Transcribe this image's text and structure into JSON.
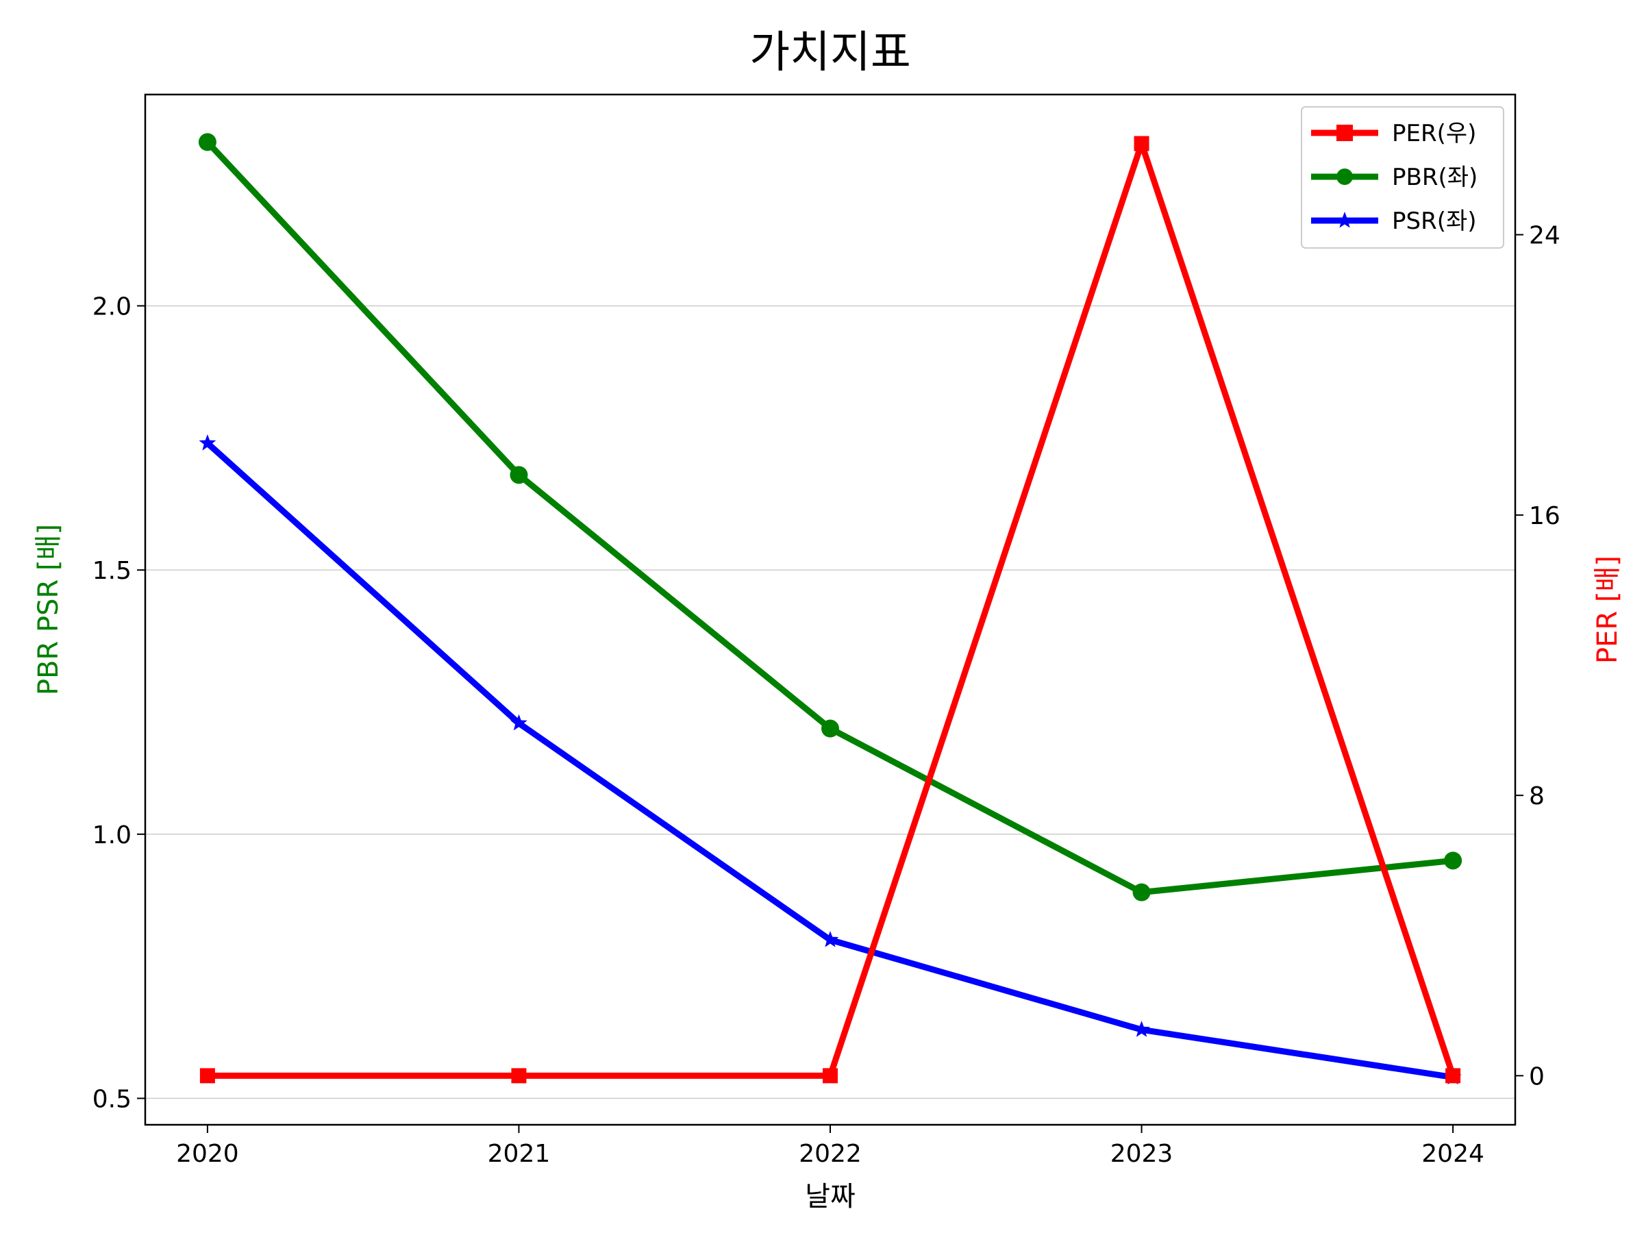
{
  "chart_data": {
    "type": "line",
    "title": "가치지표",
    "xlabel": "날짜",
    "ylabel_left": "PBR PSR [배]",
    "ylabel_right": "PER [배]",
    "x": [
      "2020",
      "2021",
      "2022",
      "2023",
      "2024"
    ],
    "xlim": [
      2019.8,
      2024.2
    ],
    "ylim_left": [
      0.45,
      2.4
    ],
    "yticks_left": [
      "0.5",
      "1.0",
      "1.5",
      "2.0"
    ],
    "ylim_right": [
      -1.4,
      28.0
    ],
    "yticks_right": [
      "0",
      "8",
      "16",
      "24"
    ],
    "grid": "horizontal (left axis)",
    "legend_position": "top-right",
    "series": [
      {
        "name": "PER(우)",
        "axis": "right",
        "color": "#ff0000",
        "marker": "square",
        "values": [
          0,
          0,
          0,
          26.6,
          0
        ]
      },
      {
        "name": "PBR(좌)",
        "axis": "left",
        "color": "#008000",
        "marker": "circle",
        "values": [
          2.31,
          1.68,
          1.2,
          0.89,
          0.95
        ]
      },
      {
        "name": "PSR(좌)",
        "axis": "left",
        "color": "#0000ff",
        "marker": "star",
        "values": [
          1.74,
          1.21,
          0.8,
          0.63,
          0.54
        ]
      }
    ]
  }
}
